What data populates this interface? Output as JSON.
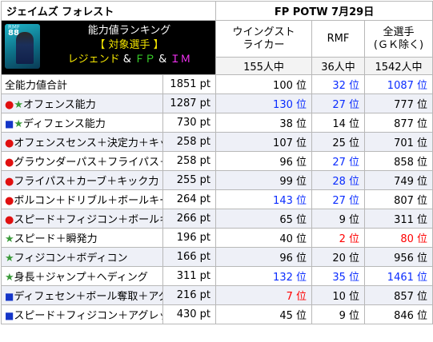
{
  "header": {
    "player_name": "ジェイムズ フォレスト",
    "date_label": "FP POTW 7月29日",
    "card": {
      "rating": "88",
      "position": "RMF"
    },
    "banner": {
      "line1": "能力値ランキング",
      "line2": "【 対象選手 】",
      "line3_parts": [
        "レジェンド",
        " & ",
        "ＦＰ",
        " & ",
        "ＩＭ"
      ]
    }
  },
  "columns": [
    {
      "label_line1": "ウイングスト",
      "label_line2": "ライカー",
      "count": "155人中"
    },
    {
      "label_line1": "RMF",
      "label_line2": "",
      "count": "36人中"
    },
    {
      "label_line1": "全選手",
      "label_line2": "(ＧＫ除く)",
      "count": "1542人中"
    }
  ],
  "rows": [
    {
      "marker": "",
      "label": "全能力値合計",
      "points": "1851 pt",
      "rank1": "100 位",
      "rank1_color": "blk",
      "rank2": "32 位",
      "rank2_color": "blue",
      "rank3": "1087 位",
      "rank3_color": "blue"
    },
    {
      "marker": "●★",
      "label": "オフェンス能力",
      "points": "1287 pt",
      "rank1": "130 位",
      "rank1_color": "blue",
      "rank2": "27 位",
      "rank2_color": "blue",
      "rank3": "777 位",
      "rank3_color": "blk"
    },
    {
      "marker": "■★",
      "label": "ディフェンス能力",
      "points": "730 pt",
      "rank1": "38 位",
      "rank1_color": "blk",
      "rank2": "14 位",
      "rank2_color": "blk",
      "rank3": "877 位",
      "rank3_color": "blk"
    },
    {
      "marker": "●",
      "label": "オフェンスセンス＋決定力＋キック力",
      "points": "258 pt",
      "rank1": "107 位",
      "rank1_color": "blk",
      "rank2": "25 位",
      "rank2_color": "blk",
      "rank3": "701 位",
      "rank3_color": "blk"
    },
    {
      "marker": "●",
      "label": "グラウンダーパス＋フライパス＋キック力",
      "points": "258 pt",
      "rank1": "96 位",
      "rank1_color": "blk",
      "rank2": "27 位",
      "rank2_color": "blue",
      "rank3": "858 位",
      "rank3_color": "blk"
    },
    {
      "marker": "●",
      "label": "フライパス＋カーブ＋キック力",
      "points": "255 pt",
      "rank1": "99 位",
      "rank1_color": "blk",
      "rank2": "28 位",
      "rank2_color": "blue",
      "rank3": "749 位",
      "rank3_color": "blk"
    },
    {
      "marker": "●",
      "label": "ボルコン＋ドリブル＋ボールキープ",
      "points": "264 pt",
      "rank1": "143 位",
      "rank1_color": "blue",
      "rank2": "27 位",
      "rank2_color": "blue",
      "rank3": "807 位",
      "rank3_color": "blk"
    },
    {
      "marker": "●",
      "label": "スピード＋フィジコン＋ボールキープ",
      "points": "266 pt",
      "rank1": "65 位",
      "rank1_color": "blk",
      "rank2": "9 位",
      "rank2_color": "blk",
      "rank3": "311 位",
      "rank3_color": "blk"
    },
    {
      "marker": "★",
      "label": "スピード＋瞬発力",
      "points": "196 pt",
      "rank1": "40 位",
      "rank1_color": "blk",
      "rank2": "2 位",
      "rank2_color": "red",
      "rank3": "80 位",
      "rank3_color": "red"
    },
    {
      "marker": "★",
      "label": "フィジコン＋ボディコン",
      "points": "166 pt",
      "rank1": "96 位",
      "rank1_color": "blk",
      "rank2": "20 位",
      "rank2_color": "blk",
      "rank3": "956 位",
      "rank3_color": "blk"
    },
    {
      "marker": "★",
      "label": "身長＋ジャンプ＋ヘディング",
      "points": "311 pt",
      "rank1": "132 位",
      "rank1_color": "blue",
      "rank2": "35 位",
      "rank2_color": "blue",
      "rank3": "1461 位",
      "rank3_color": "blue"
    },
    {
      "marker": "■",
      "label": "ディフェセン＋ボール奪取＋アグレッシブ",
      "points": "216 pt",
      "rank1": "7 位",
      "rank1_color": "red",
      "rank2": "10 位",
      "rank2_color": "blk",
      "rank3": "857 位",
      "rank3_color": "blk"
    },
    {
      "marker": "■",
      "label": "スピード＋フィジコン＋アグレッシブ＋身長",
      "points": "430 pt",
      "rank1": "45 位",
      "rank1_color": "blk",
      "rank2": "9 位",
      "rank2_color": "blk",
      "rank3": "846 位",
      "rank3_color": "blk"
    }
  ],
  "colors": {
    "blue": "#0a2cff",
    "red": "#ff0000",
    "marker_red": "#e01010",
    "marker_green": "#3a9a3a",
    "marker_blue": "#1536c8",
    "alt_row": "#eef0f7"
  }
}
